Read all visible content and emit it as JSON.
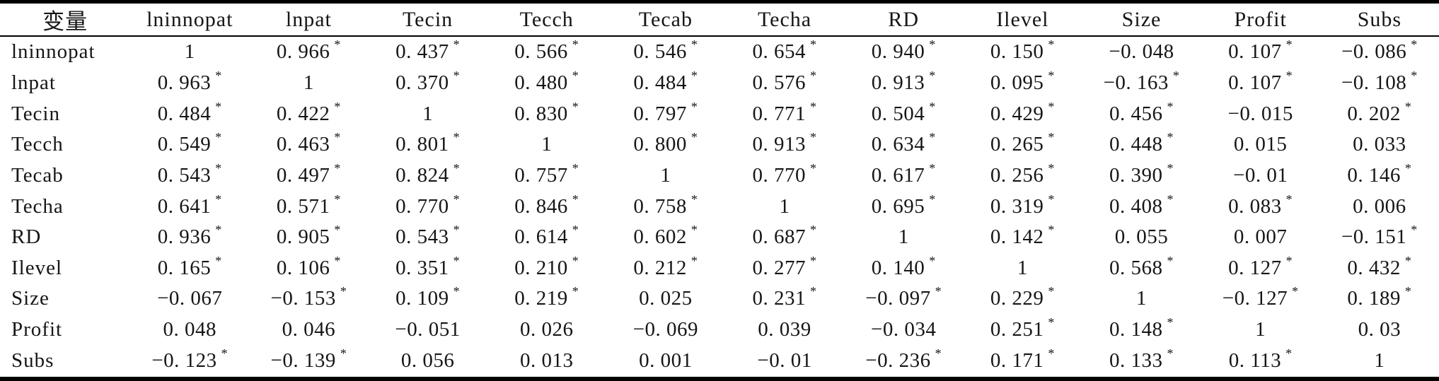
{
  "style": {
    "background": "#ffffff",
    "text_color": "#161616",
    "rule_color": "#000000"
  },
  "table": {
    "significance_marker": "*",
    "columns": [
      "变量",
      "lninnopat",
      "lnpat",
      "Tecin",
      "Tecch",
      "Tecab",
      "Techa",
      "RD",
      "Ilevel",
      "Size",
      "Profit",
      "Subs"
    ],
    "rows": [
      {
        "label": "lninnopat",
        "values": [
          "1",
          "0.966*",
          "0.437*",
          "0.566*",
          "0.546*",
          "0.654*",
          "0.940*",
          "0.150*",
          "-0.048",
          "0.107*",
          "-0.086*"
        ]
      },
      {
        "label": "lnpat",
        "values": [
          "0.963*",
          "1",
          "0.370*",
          "0.480*",
          "0.484*",
          "0.576*",
          "0.913*",
          "0.095*",
          "-0.163*",
          "0.107*",
          "-0.108*"
        ]
      },
      {
        "label": "Tecin",
        "values": [
          "0.484*",
          "0.422*",
          "1",
          "0.830*",
          "0.797*",
          "0.771*",
          "0.504*",
          "0.429*",
          "0.456*",
          "-0.015",
          "0.202*"
        ]
      },
      {
        "label": "Tecch",
        "values": [
          "0.549*",
          "0.463*",
          "0.801*",
          "1",
          "0.800*",
          "0.913*",
          "0.634*",
          "0.265*",
          "0.448*",
          "0.015",
          "0.033"
        ]
      },
      {
        "label": "Tecab",
        "values": [
          "0.543*",
          "0.497*",
          "0.824*",
          "0.757*",
          "1",
          "0.770*",
          "0.617*",
          "0.256*",
          "0.390*",
          "-0.01",
          "0.146*"
        ]
      },
      {
        "label": "Techa",
        "values": [
          "0.641*",
          "0.571*",
          "0.770*",
          "0.846*",
          "0.758*",
          "1",
          "0.695*",
          "0.319*",
          "0.408*",
          "0.083*",
          "0.006"
        ]
      },
      {
        "label": "RD",
        "values": [
          "0.936*",
          "0.905*",
          "0.543*",
          "0.614*",
          "0.602*",
          "0.687*",
          "1",
          "0.142*",
          "0.055",
          "0.007",
          "-0.151*"
        ]
      },
      {
        "label": "Ilevel",
        "values": [
          "0.165*",
          "0.106*",
          "0.351*",
          "0.210*",
          "0.212*",
          "0.277*",
          "0.140*",
          "1",
          "0.568*",
          "0.127*",
          "0.432*"
        ]
      },
      {
        "label": "Size",
        "values": [
          "-0.067",
          "-0.153*",
          "0.109*",
          "0.219*",
          "0.025",
          "0.231*",
          "-0.097*",
          "0.229*",
          "1",
          "-0.127*",
          "0.189*"
        ]
      },
      {
        "label": "Profit",
        "values": [
          "0.048",
          "0.046",
          "-0.051",
          "0.026",
          "-0.069",
          "0.039",
          "-0.034",
          "0.251*",
          "0.148*",
          "1",
          "0.03"
        ]
      },
      {
        "label": "Subs",
        "values": [
          "-0.123*",
          "-0.139*",
          "0.056",
          "0.013",
          "0.001",
          "-0.01",
          "-0.236*",
          "0.171*",
          "0.133*",
          "0.113*",
          "1"
        ]
      }
    ]
  }
}
